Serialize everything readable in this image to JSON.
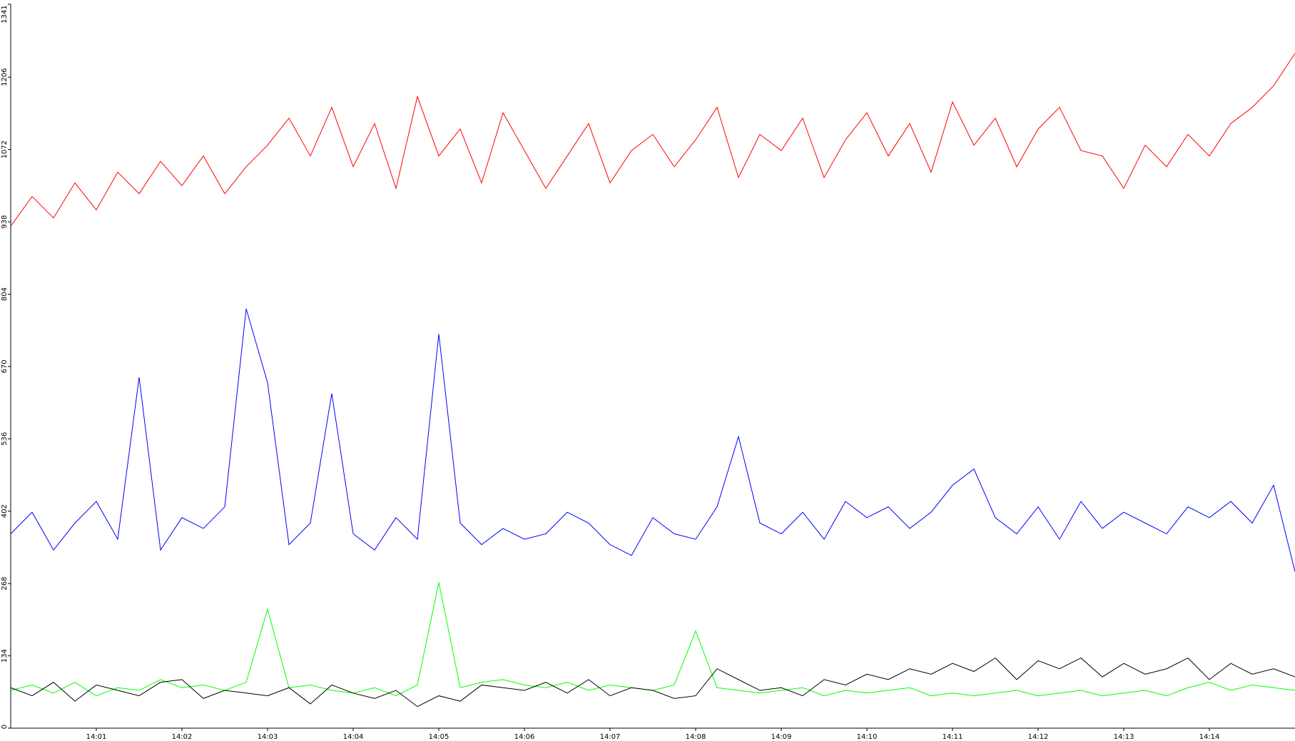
{
  "chart_data": {
    "type": "line",
    "x": [
      0,
      0.25,
      0.5,
      0.75,
      1,
      1.25,
      1.5,
      1.75,
      2,
      2.25,
      2.5,
      2.75,
      3,
      3.25,
      3.5,
      3.75,
      4,
      4.25,
      4.5,
      4.75,
      5,
      5.25,
      5.5,
      5.75,
      6,
      6.25,
      6.5,
      6.75,
      7,
      7.25,
      7.5,
      7.75,
      8,
      8.25,
      8.5,
      8.75,
      9,
      9.25,
      9.5,
      9.75,
      10,
      10.25,
      10.5,
      10.75,
      11,
      11.25,
      11.5,
      11.75,
      12,
      12.25,
      12.5,
      12.75,
      13,
      13.25,
      13.5,
      13.75,
      14,
      14.25,
      14.5,
      14.75,
      15
    ],
    "series": [
      {
        "color": "#ff0000",
        "values": [
          930,
          985,
          945,
          1010,
          960,
          1030,
          990,
          1050,
          1005,
          1060,
          990,
          1040,
          1080,
          1130,
          1060,
          1150,
          1040,
          1120,
          1000,
          1170,
          1060,
          1110,
          1010,
          1140,
          1070,
          1000,
          1060,
          1120,
          1010,
          1070,
          1100,
          1040,
          1090,
          1150,
          1020,
          1100,
          1070,
          1130,
          1020,
          1090,
          1140,
          1060,
          1120,
          1030,
          1160,
          1080,
          1130,
          1040,
          1110,
          1150,
          1070,
          1060,
          1000,
          1080,
          1040,
          1100,
          1060,
          1120,
          1150,
          1190,
          1250
        ]
      },
      {
        "color": "#0000ff",
        "values": [
          360,
          400,
          330,
          380,
          420,
          350,
          650,
          330,
          390,
          370,
          410,
          777,
          640,
          340,
          380,
          620,
          360,
          330,
          390,
          350,
          730,
          380,
          340,
          370,
          350,
          360,
          400,
          380,
          340,
          320,
          390,
          360,
          350,
          410,
          540,
          380,
          360,
          400,
          350,
          420,
          390,
          410,
          370,
          400,
          450,
          480,
          390,
          360,
          410,
          350,
          420,
          370,
          400,
          380,
          360,
          410,
          390,
          420,
          380,
          450,
          290
        ]
      },
      {
        "color": "#00ff00",
        "values": [
          70,
          80,
          65,
          85,
          60,
          75,
          70,
          90,
          75,
          80,
          70,
          85,
          220,
          75,
          80,
          70,
          65,
          75,
          60,
          80,
          270,
          75,
          85,
          90,
          80,
          75,
          85,
          70,
          80,
          75,
          70,
          80,
          180,
          75,
          70,
          65,
          70,
          75,
          60,
          70,
          65,
          70,
          75,
          60,
          65,
          60,
          65,
          70,
          60,
          65,
          70,
          60,
          65,
          70,
          60,
          75,
          85,
          70,
          80,
          75,
          70
        ]
      },
      {
        "color": "#000000",
        "values": [
          75,
          60,
          85,
          50,
          80,
          70,
          60,
          85,
          90,
          55,
          70,
          65,
          60,
          75,
          45,
          80,
          65,
          55,
          70,
          40,
          60,
          50,
          80,
          75,
          70,
          85,
          65,
          90,
          60,
          75,
          70,
          55,
          60,
          110,
          90,
          70,
          75,
          60,
          90,
          80,
          100,
          90,
          110,
          100,
          120,
          105,
          130,
          90,
          125,
          110,
          130,
          95,
          120,
          100,
          110,
          130,
          90,
          120,
          100,
          110,
          95
        ]
      }
    ],
    "xlim": [
      0,
      15
    ],
    "xticks": [
      {
        "value": 1,
        "label": "14:01"
      },
      {
        "value": 2,
        "label": "14:02"
      },
      {
        "value": 3,
        "label": "14:03"
      },
      {
        "value": 4,
        "label": "14:04"
      },
      {
        "value": 5,
        "label": "14:05"
      },
      {
        "value": 6,
        "label": "14:06"
      },
      {
        "value": 7,
        "label": "14:07"
      },
      {
        "value": 8,
        "label": "14:08"
      },
      {
        "value": 9,
        "label": "14:09"
      },
      {
        "value": 10,
        "label": "14:10"
      },
      {
        "value": 11,
        "label": "14:11"
      },
      {
        "value": 12,
        "label": "14:12"
      },
      {
        "value": 13,
        "label": "14:13"
      },
      {
        "value": 14,
        "label": "14:14"
      }
    ],
    "ylim": [
      0,
      1341
    ],
    "yticks": [
      0,
      134,
      268,
      402,
      536,
      670,
      804,
      938,
      1072,
      1206,
      1341
    ]
  }
}
